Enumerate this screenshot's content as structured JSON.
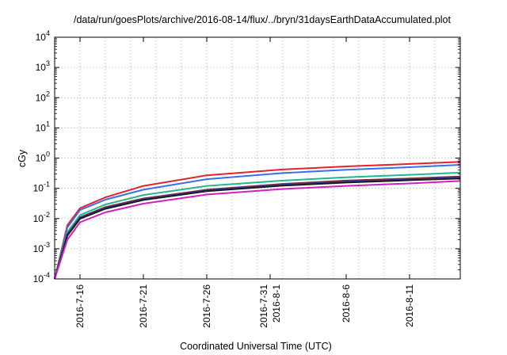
{
  "chart_data": {
    "type": "line",
    "title": "/data/run/goesPlots/archive/2016-08-14/flux/../bryn/31daysEarthDataAccumulated.plot",
    "xlabel": "Coordinated Universal Time (UTC)",
    "ylabel": "cGy",
    "y_scale": "log",
    "ylim": [
      0.0001,
      10000
    ],
    "y_ticks": [
      {
        "base": "10",
        "exp": "-4"
      },
      {
        "base": "10",
        "exp": "-3"
      },
      {
        "base": "10",
        "exp": "-2"
      },
      {
        "base": "10",
        "exp": "-1"
      },
      {
        "base": "10",
        "exp": "0"
      },
      {
        "base": "10",
        "exp": "1"
      },
      {
        "base": "10",
        "exp": "2"
      },
      {
        "base": "10",
        "exp": "3"
      },
      {
        "base": "10",
        "exp": "4"
      }
    ],
    "xlim": [
      "2016-07-14",
      "2016-08-15"
    ],
    "x_ticks": [
      {
        "date": "2016-07-16",
        "label": [
          "2016-7-16"
        ]
      },
      {
        "date": "2016-07-21",
        "label": [
          "2016-7-21"
        ]
      },
      {
        "date": "2016-07-26",
        "label": [
          "2016-7-26"
        ]
      },
      {
        "date": "2016-07-31",
        "label": [
          "2016-7-31",
          "2016-8-1"
        ]
      },
      {
        "date": "2016-08-06",
        "label": [
          "2016-8-6"
        ]
      },
      {
        "date": "2016-08-11",
        "label": [
          "2016-8-11"
        ]
      }
    ],
    "grid": true,
    "legend": "none",
    "series": [
      {
        "color": "#e8202a",
        "x": [
          "2016-07-14",
          "2016-07-15",
          "2016-07-16",
          "2016-07-18",
          "2016-07-21",
          "2016-07-26",
          "2016-08-01",
          "2016-08-06",
          "2016-08-11",
          "2016-08-15"
        ],
        "y": [
          0.0001,
          0.006,
          0.022,
          0.05,
          0.12,
          0.27,
          0.42,
          0.53,
          0.64,
          0.75
        ]
      },
      {
        "color": "#3a6fe8",
        "x": [
          "2016-07-14",
          "2016-07-15",
          "2016-07-16",
          "2016-07-18",
          "2016-07-21",
          "2016-07-26",
          "2016-08-01",
          "2016-08-06",
          "2016-08-11",
          "2016-08-15"
        ],
        "y": [
          0.0001,
          0.005,
          0.019,
          0.042,
          0.09,
          0.2,
          0.32,
          0.41,
          0.5,
          0.6
        ]
      },
      {
        "color": "#20b890",
        "x": [
          "2016-07-14",
          "2016-07-15",
          "2016-07-16",
          "2016-07-18",
          "2016-07-21",
          "2016-07-26",
          "2016-08-01",
          "2016-08-06",
          "2016-08-11",
          "2016-08-15"
        ],
        "y": [
          0.0001,
          0.0035,
          0.013,
          0.029,
          0.06,
          0.12,
          0.18,
          0.23,
          0.28,
          0.33
        ]
      },
      {
        "color": "#7a2a3a",
        "x": [
          "2016-07-14",
          "2016-07-15",
          "2016-07-16",
          "2016-07-18",
          "2016-07-21",
          "2016-07-26",
          "2016-08-01",
          "2016-08-06",
          "2016-08-11",
          "2016-08-15"
        ],
        "y": [
          0.0001,
          0.003,
          0.011,
          0.024,
          0.046,
          0.09,
          0.14,
          0.18,
          0.21,
          0.245
        ]
      },
      {
        "color": "#3a3aa0",
        "x": [
          "2016-07-14",
          "2016-07-15",
          "2016-07-16",
          "2016-07-18",
          "2016-07-21",
          "2016-07-26",
          "2016-08-01",
          "2016-08-06",
          "2016-08-11",
          "2016-08-15"
        ],
        "y": [
          0.0001,
          0.0028,
          0.0105,
          0.022,
          0.043,
          0.085,
          0.13,
          0.165,
          0.195,
          0.225
        ]
      },
      {
        "color": "#1a1a1a",
        "x": [
          "2016-07-14",
          "2016-07-15",
          "2016-07-16",
          "2016-07-18",
          "2016-07-21",
          "2016-07-26",
          "2016-08-01",
          "2016-08-06",
          "2016-08-11",
          "2016-08-15"
        ],
        "y": [
          0.0001,
          0.0027,
          0.0098,
          0.021,
          0.041,
          0.08,
          0.122,
          0.155,
          0.185,
          0.212
        ]
      },
      {
        "color": "#d020c0",
        "x": [
          "2016-07-14",
          "2016-07-15",
          "2016-07-16",
          "2016-07-18",
          "2016-07-21",
          "2016-07-26",
          "2016-08-01",
          "2016-08-06",
          "2016-08-11",
          "2016-08-15"
        ],
        "y": [
          0.0001,
          0.002,
          0.0075,
          0.016,
          0.031,
          0.062,
          0.095,
          0.12,
          0.145,
          0.175
        ]
      }
    ]
  }
}
